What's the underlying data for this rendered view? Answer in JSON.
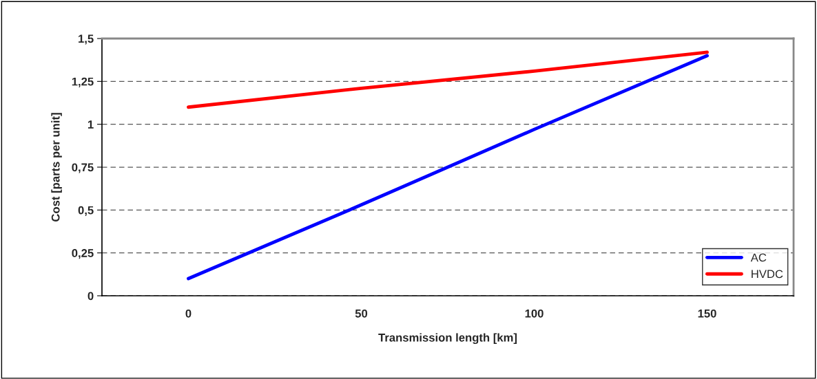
{
  "chart_data": {
    "type": "line",
    "xlabel": "Transmission length [km]",
    "ylabel": "Cost [parts per unit]",
    "categories": [
      "0",
      "50",
      "100",
      "150"
    ],
    "series": [
      {
        "name": "AC",
        "color": "#0000ff",
        "values": [
          0.1,
          0.53,
          0.97,
          1.4
        ]
      },
      {
        "name": "HVDC",
        "color": "#ff0000",
        "values": [
          1.1,
          1.21,
          1.31,
          1.42
        ]
      }
    ],
    "ylim": [
      0,
      1.5
    ],
    "yticks": [
      {
        "value": 0,
        "label": "0"
      },
      {
        "value": 0.25,
        "label": "0,25"
      },
      {
        "value": 0.5,
        "label": "0,5"
      },
      {
        "value": 0.75,
        "label": "0,75"
      },
      {
        "value": 1,
        "label": "1"
      },
      {
        "value": 1.25,
        "label": "1,25"
      },
      {
        "value": 1.5,
        "label": "1,5"
      }
    ],
    "grid": "y",
    "legend": "bottom right",
    "marker": "none",
    "line_style": "solid"
  }
}
